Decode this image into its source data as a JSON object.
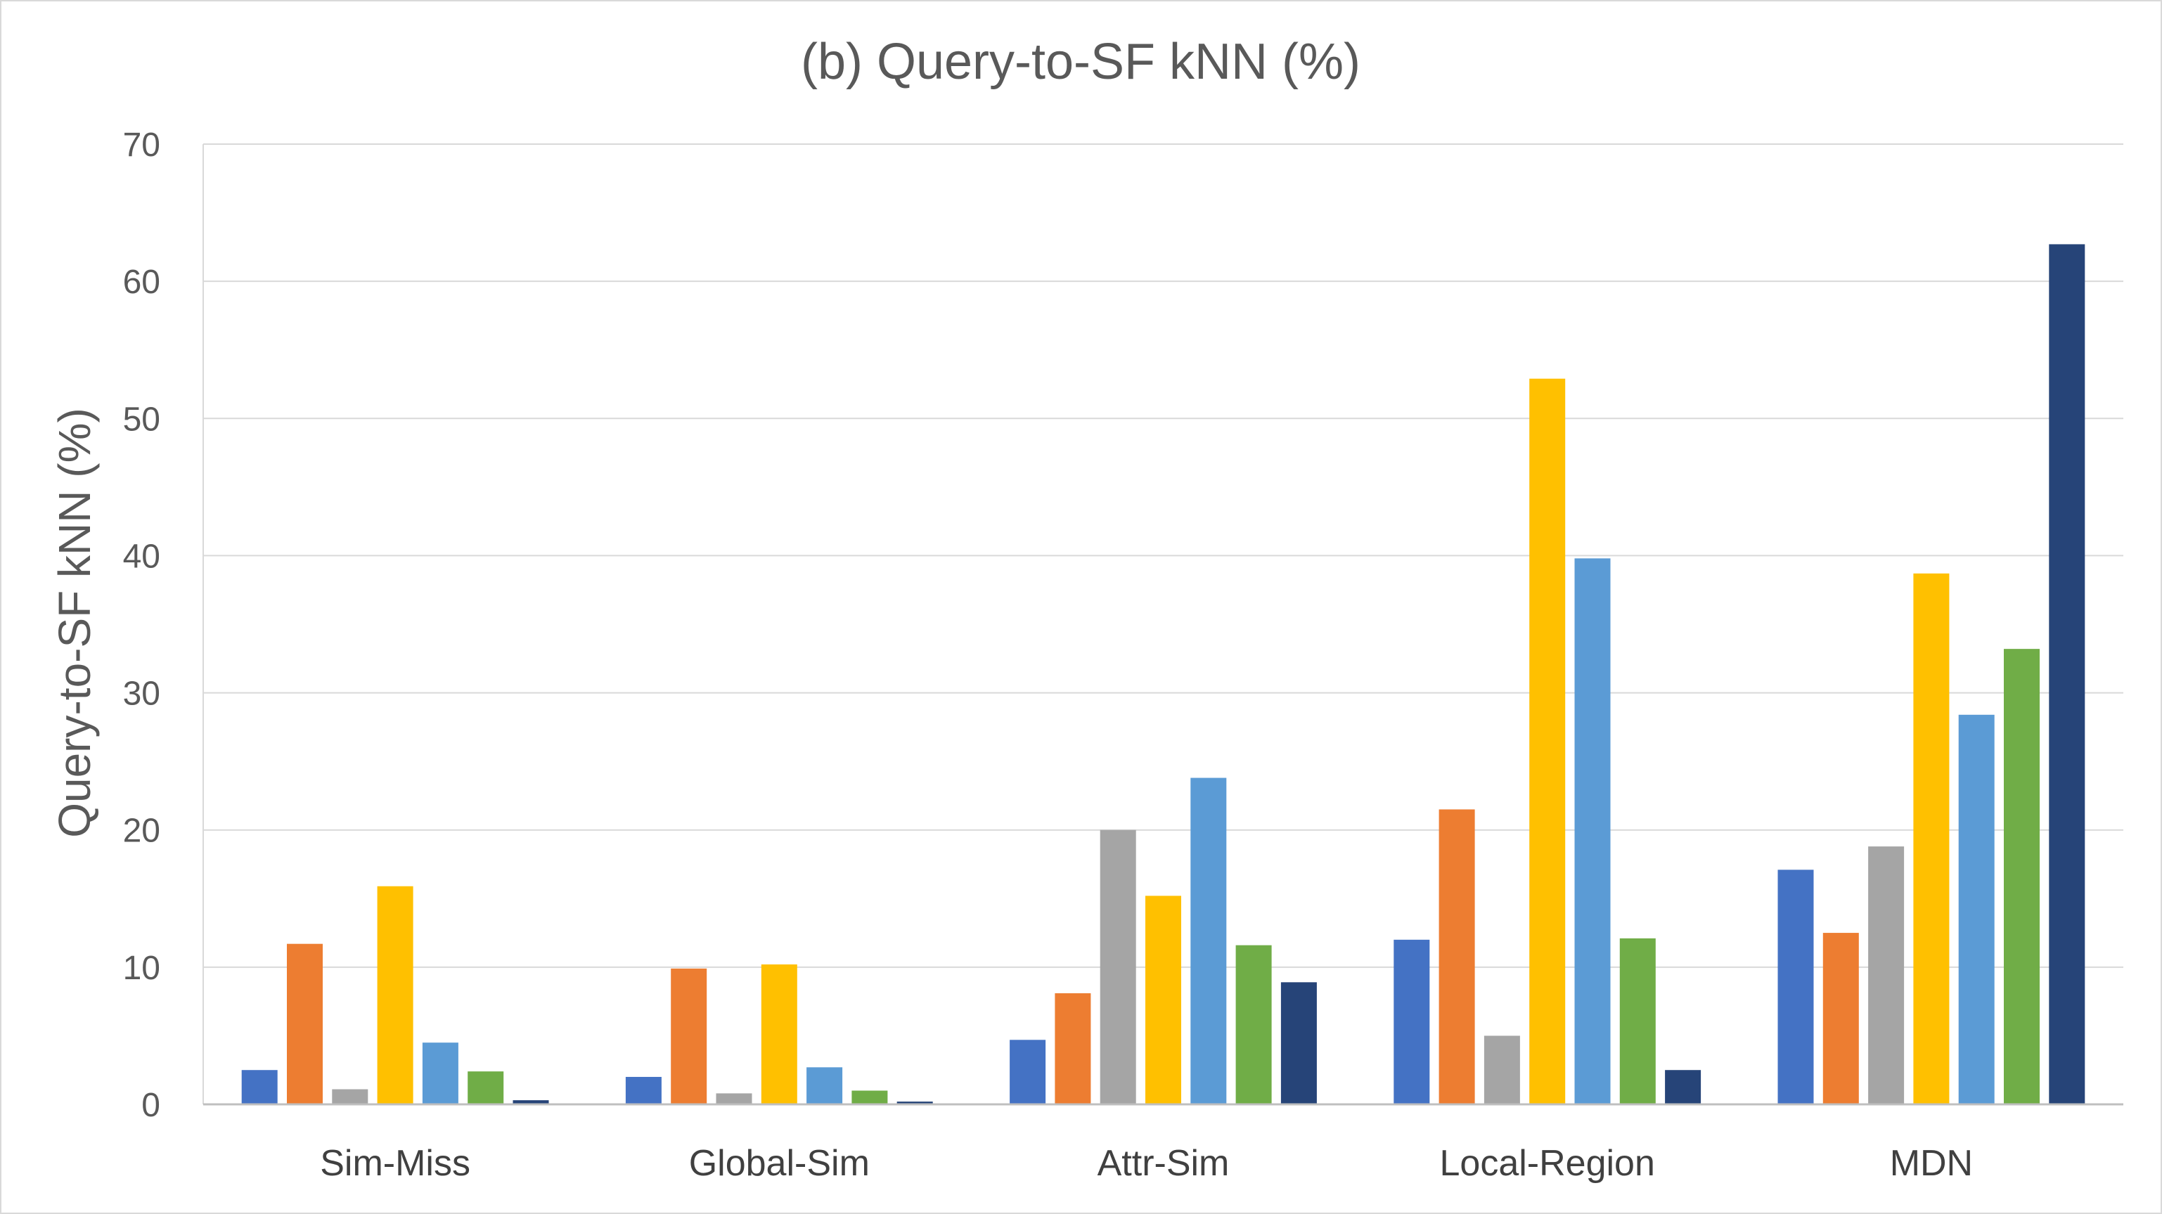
{
  "chart_data": {
    "type": "bar",
    "title": "(b) Query-to-SF kNN (%)",
    "xlabel": "",
    "ylabel": "Query-to-SF kNN (%)",
    "ylim": [
      0,
      70
    ],
    "yticks": [
      0,
      10,
      20,
      30,
      40,
      50,
      60,
      70
    ],
    "grid": "horizontal",
    "legend": "none",
    "categories": [
      "Sim-Miss",
      "Global-Sim",
      "Attr-Sim",
      "Local-Region",
      "MDN"
    ],
    "series": [
      {
        "color": "#4472C4",
        "values": [
          2.5,
          2.0,
          4.7,
          12.0,
          17.1
        ]
      },
      {
        "color": "#ED7D31",
        "values": [
          11.7,
          9.9,
          8.1,
          21.5,
          12.5
        ]
      },
      {
        "color": "#A5A5A5",
        "values": [
          1.1,
          0.8,
          20.0,
          5.0,
          18.8
        ]
      },
      {
        "color": "#FFC000",
        "values": [
          15.9,
          10.2,
          15.2,
          52.9,
          38.7
        ]
      },
      {
        "color": "#5B9BD5",
        "values": [
          4.5,
          2.7,
          23.8,
          39.8,
          28.4
        ]
      },
      {
        "color": "#70AD47",
        "values": [
          2.4,
          1.0,
          11.6,
          12.1,
          33.2
        ]
      },
      {
        "color": "#264478",
        "values": [
          0.3,
          0.2,
          8.9,
          2.5,
          62.7
        ]
      }
    ]
  }
}
